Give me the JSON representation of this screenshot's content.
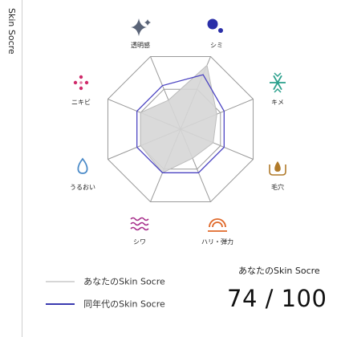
{
  "sidebar": {
    "label": "Skin Socre"
  },
  "radar": {
    "axes": [
      {
        "label": "シミ",
        "icon": "two-dots-icon",
        "color": "#2b2fa8",
        "yours": 88,
        "peer": 75
      },
      {
        "label": "キメ",
        "icon": "snowflake-icon",
        "color": "#2aa08c",
        "yours": 50,
        "peer": 60
      },
      {
        "label": "毛穴",
        "icon": "pore-drop-icon",
        "color": "#b07a2a",
        "yours": 45,
        "peer": 60
      },
      {
        "label": "ハリ・弾力",
        "icon": "arcs-icon",
        "color": "#e0692a",
        "yours": 40,
        "peer": 60
      },
      {
        "label": "シワ",
        "icon": "waves-icon",
        "color": "#a8308c",
        "yours": 60,
        "peer": 60
      },
      {
        "label": "うるおい",
        "icon": "water-drop-icon",
        "color": "#4a8ac8",
        "yours": 55,
        "peer": 60
      },
      {
        "label": "ニキビ",
        "icon": "dots-grid-icon",
        "color": "#d02a6a",
        "yours": 55,
        "peer": 60
      },
      {
        "label": "透明感",
        "icon": "sparkle-icon",
        "color": "#5a6478",
        "yours": 40,
        "peer": 60
      }
    ],
    "colors": {
      "yours_fill": "#d6d6d6",
      "yours_stroke": "#bdbdbd",
      "peer_stroke": "#4b44c2",
      "grid": "#9a9a9a"
    }
  },
  "legend": {
    "yours": {
      "label": "あなたのSkin Socre",
      "color": "#d6d6d6"
    },
    "peer": {
      "label": "同年代のSkin Socre",
      "color": "#3a3ab0"
    }
  },
  "score": {
    "title": "あなたのSkin Socre",
    "value": "74 / 100"
  }
}
